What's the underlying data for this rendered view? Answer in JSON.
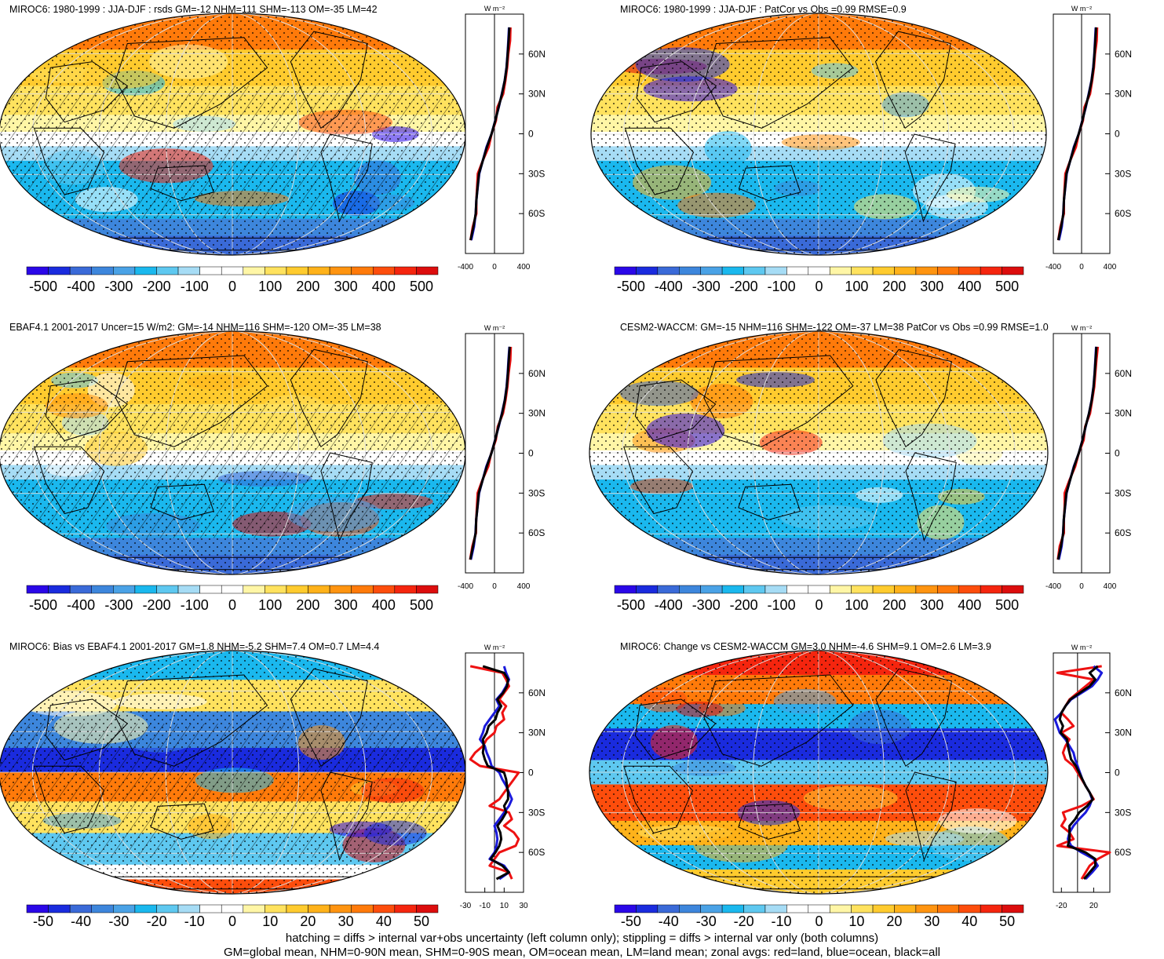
{
  "footer": {
    "line1": "hatching = diffs > internal var+obs uncertainty (left column only); stippling = diffs > internal var only (both columns)",
    "line2": "GM=global mean, NHM=0-90N mean, SHM=0-90S mean, OM=ocean mean, LM=land mean; zonal avgs: red=land, blue=ocean, black=all"
  },
  "colors": {
    "land": "#ee1111",
    "ocean": "#1a1adc",
    "all": "#000000",
    "scale": [
      "#2a07e8",
      "#1a2bde",
      "#3a6ad8",
      "#3d86dc",
      "#4aa2e6",
      "#1ab8ee",
      "#5ec8f0",
      "#a6dcf5",
      "#ffffff",
      "#ffffff",
      "#fff6a6",
      "#ffe25e",
      "#ffcb2e",
      "#ffb21a",
      "#ff9410",
      "#ff7a0a",
      "#fd4d0c",
      "#f5250e",
      "#dc0d0d"
    ]
  },
  "chart_data": [
    {
      "type": "map",
      "title": "MIROC6: 1980-1999 : JJA-DJF : rsds GM=-12 NHM=111 SHM=-113 OM=-35 LM=42",
      "field": "seasonal",
      "hatch": true,
      "colorbar_labels": [
        "-500",
        "-400",
        "-300",
        "-200",
        "-100",
        "0",
        "100",
        "200",
        "300",
        "400",
        "500"
      ],
      "zonal": {
        "unit_label": "W m⁻²",
        "xlim": [
          -400,
          400
        ],
        "xticks": [
          "-400",
          "0",
          "400"
        ],
        "lat_labels": [
          "60N",
          "30N",
          "0",
          "30S",
          "60S"
        ],
        "lat": [
          80,
          70,
          60,
          50,
          40,
          30,
          20,
          10,
          0,
          -10,
          -20,
          -30,
          -40,
          -50,
          -60,
          -70,
          -80
        ],
        "series": [
          {
            "name": "land",
            "values": [
              220,
              215,
              190,
              175,
              150,
              120,
              40,
              20,
              -40,
              -80,
              -160,
              -230,
              -240,
              -250,
              -250,
              -300,
              -330
            ]
          },
          {
            "name": "ocean",
            "values": [
              200,
              190,
              180,
              165,
              140,
              100,
              60,
              10,
              -40,
              -110,
              -160,
              -210,
              -230,
              -250,
              -260,
              -280,
              -320
            ]
          },
          {
            "name": "all",
            "values": [
              205,
              195,
              182,
              168,
              142,
              104,
              56,
              12,
              -40,
              -104,
              -160,
              -214,
              -232,
              -250,
              -258,
              -290,
              -330
            ]
          }
        ]
      }
    },
    {
      "type": "map",
      "title": "MIROC6: 1980-1999 : JJA-DJF : PatCor vs Obs =0.99 RMSE=0.9",
      "field": "seasonal",
      "hatch": false,
      "colorbar_labels": [
        "-500",
        "-400",
        "-300",
        "-200",
        "-100",
        "0",
        "100",
        "200",
        "300",
        "400",
        "500"
      ],
      "zonal": {
        "unit_label": "W m⁻²",
        "xlim": [
          -400,
          400
        ],
        "xticks": [
          "-400",
          "0",
          "400"
        ],
        "lat_labels": [
          "60N",
          "30N",
          "0",
          "30S",
          "60S"
        ],
        "lat": [
          80,
          70,
          60,
          50,
          40,
          30,
          20,
          10,
          0,
          -10,
          -20,
          -30,
          -40,
          -50,
          -60,
          -70,
          -80
        ],
        "series": [
          {
            "name": "land",
            "values": [
              220,
              215,
              190,
              175,
              150,
              120,
              40,
              20,
              -40,
              -80,
              -160,
              -230,
              -240,
              -250,
              -250,
              -300,
              -330
            ]
          },
          {
            "name": "ocean",
            "values": [
              200,
              190,
              180,
              165,
              140,
              100,
              60,
              10,
              -40,
              -110,
              -160,
              -210,
              -230,
              -250,
              -260,
              -280,
              -320
            ]
          },
          {
            "name": "all",
            "values": [
              205,
              195,
              182,
              168,
              142,
              104,
              56,
              12,
              -40,
              -104,
              -160,
              -214,
              -232,
              -250,
              -258,
              -290,
              -330
            ]
          }
        ]
      }
    },
    {
      "type": "map",
      "title": "EBAF4.1 2001-2017 Uncer=15 W/m2: GM=-14 NHM=116 SHM=-120 OM=-35 LM=38",
      "field": "seasonal",
      "hatch": true,
      "colorbar_labels": [
        "-500",
        "-400",
        "-300",
        "-200",
        "-100",
        "0",
        "100",
        "200",
        "300",
        "400",
        "500"
      ],
      "zonal": {
        "unit_label": "W m⁻²",
        "xlim": [
          -400,
          400
        ],
        "xticks": [
          "-400",
          "0",
          "400"
        ],
        "lat_labels": [
          "60N",
          "30N",
          "0",
          "30S",
          "60S"
        ],
        "lat": [
          80,
          70,
          60,
          50,
          40,
          30,
          20,
          10,
          0,
          -10,
          -20,
          -30,
          -40,
          -50,
          -60,
          -70,
          -80
        ],
        "series": [
          {
            "name": "land",
            "values": [
              225,
              218,
              195,
              178,
              152,
              118,
              45,
              18,
              -45,
              -85,
              -165,
              -232,
              -242,
              -252,
              -255,
              -305,
              -335
            ]
          },
          {
            "name": "ocean",
            "values": [
              205,
              192,
              182,
              166,
              142,
              102,
              58,
              8,
              -42,
              -112,
              -162,
              -212,
              -232,
              -252,
              -262,
              -285,
              -325
            ]
          },
          {
            "name": "all",
            "values": [
              210,
              197,
              185,
              170,
              144,
              106,
              54,
              10,
              -42,
              -106,
              -162,
              -216,
              -234,
              -252,
              -260,
              -295,
              -333
            ]
          }
        ]
      }
    },
    {
      "type": "map",
      "title": "CESM2-WACCM: GM=-15 NHM=116 SHM=-122 OM=-37 LM=38 PatCor vs Obs =0.99 RMSE=1.0",
      "field": "seasonal",
      "hatch": false,
      "colorbar_labels": [
        "-500",
        "-400",
        "-300",
        "-200",
        "-100",
        "0",
        "100",
        "200",
        "300",
        "400",
        "500"
      ],
      "zonal": {
        "unit_label": "W m⁻²",
        "xlim": [
          -400,
          400
        ],
        "xticks": [
          "-400",
          "0",
          "400"
        ],
        "lat_labels": [
          "60N",
          "30N",
          "0",
          "30S",
          "60S"
        ],
        "lat": [
          80,
          70,
          60,
          50,
          40,
          30,
          20,
          10,
          0,
          -10,
          -20,
          -30,
          -40,
          -50,
          -60,
          -70,
          -80
        ],
        "series": [
          {
            "name": "land",
            "values": [
              230,
              210,
              195,
              180,
              150,
              120,
              50,
              30,
              -40,
              -90,
              -170,
              -240,
              -240,
              -250,
              -250,
              -310,
              -335
            ]
          },
          {
            "name": "ocean",
            "values": [
              205,
              195,
              183,
              168,
              142,
              104,
              58,
              12,
              -40,
              -110,
              -162,
              -212,
              -232,
              -252,
              -262,
              -282,
              -322
            ]
          },
          {
            "name": "all",
            "values": [
              210,
              198,
              186,
              170,
              144,
              106,
              56,
              14,
              -40,
              -106,
              -162,
              -216,
              -234,
              -252,
              -260,
              -292,
              -332
            ]
          }
        ]
      }
    },
    {
      "type": "map",
      "title": "MIROC6: Bias vs EBAF4.1 2001-2017 GM=1.8 NHM=-5.2 SHM=7.4 OM=0.7 LM=4.4",
      "field": "bias",
      "hatch": true,
      "colorbar_labels": [
        "-50",
        "-40",
        "-30",
        "-20",
        "-10",
        "0",
        "10",
        "20",
        "30",
        "40",
        "50"
      ],
      "zonal": {
        "unit_label": "W m⁻²",
        "xlim": [
          -30,
          30
        ],
        "xticks": [
          "-30",
          "-10",
          "10",
          "30"
        ],
        "lat_labels": [
          "60N",
          "30N",
          "0",
          "30S",
          "60S"
        ],
        "lat": [
          80,
          75,
          70,
          65,
          60,
          55,
          50,
          45,
          40,
          35,
          30,
          25,
          20,
          15,
          10,
          5,
          0,
          -5,
          -10,
          -15,
          -20,
          -25,
          -30,
          -35,
          -40,
          -45,
          -50,
          -55,
          -60,
          -65,
          -70,
          -75,
          -80
        ],
        "series": [
          {
            "name": "land",
            "values": [
              -25,
              8,
              12,
              15,
              10,
              5,
              12,
              8,
              10,
              2,
              0,
              -8,
              -12,
              -20,
              -25,
              -15,
              25,
              20,
              15,
              10,
              5,
              -5,
              15,
              18,
              10,
              20,
              25,
              22,
              5,
              0,
              -5,
              15,
              18
            ]
          },
          {
            "name": "ocean",
            "values": [
              10,
              12,
              15,
              12,
              8,
              2,
              5,
              0,
              -5,
              -10,
              -12,
              -15,
              -10,
              -8,
              -5,
              -3,
              5,
              8,
              12,
              15,
              18,
              15,
              10,
              5,
              0,
              2,
              3,
              2,
              0,
              -5,
              10,
              15,
              5
            ]
          },
          {
            "name": "all",
            "values": [
              -12,
              10,
              14,
              13,
              9,
              3,
              7,
              3,
              1,
              -6,
              -8,
              -12,
              -11,
              -12,
              -10,
              -7,
              10,
              12,
              13,
              14,
              14,
              10,
              12,
              8,
              3,
              6,
              7,
              5,
              1,
              -4,
              8,
              15,
              2
            ]
          }
        ]
      }
    },
    {
      "type": "map",
      "title": "MIROC6: Change vs CESM2-WACCM GM=3.0 NHM=-4.6 SHM=9.1 OM=2.6 LM=3.9",
      "field": "change",
      "hatch": false,
      "colorbar_labels": [
        "-50",
        "-40",
        "-30",
        "-20",
        "-10",
        "0",
        "10",
        "20",
        "30",
        "40",
        "50"
      ],
      "zonal": {
        "unit_label": "W m⁻²",
        "xlim": [
          -30,
          40
        ],
        "xticks": [
          "-20",
          "20"
        ],
        "lat_labels": [
          "60N",
          "30N",
          "0",
          "30S",
          "60S"
        ],
        "lat": [
          80,
          75,
          70,
          65,
          60,
          55,
          50,
          45,
          40,
          35,
          30,
          25,
          20,
          15,
          10,
          5,
          0,
          -5,
          -10,
          -15,
          -20,
          -25,
          -30,
          -35,
          -40,
          -45,
          -50,
          -55,
          -60,
          -65,
          -70,
          -75,
          -80
        ],
        "series": [
          {
            "name": "land",
            "values": [
              30,
              -25,
              20,
              10,
              0,
              -10,
              -15,
              -20,
              -12,
              -5,
              -20,
              -10,
              -15,
              -18,
              -15,
              -5,
              0,
              5,
              10,
              15,
              20,
              5,
              -18,
              -15,
              -20,
              -10,
              -5,
              -25,
              40,
              25,
              15,
              10,
              5
            ]
          },
          {
            "name": "ocean",
            "values": [
              20,
              30,
              25,
              18,
              5,
              -8,
              -15,
              -20,
              -28,
              -25,
              -22,
              -15,
              -10,
              -5,
              -3,
              0,
              3,
              6,
              10,
              15,
              18,
              15,
              10,
              2,
              -5,
              -10,
              -12,
              -8,
              5,
              20,
              25,
              18,
              10
            ]
          },
          {
            "name": "all",
            "values": [
              25,
              15,
              22,
              15,
              3,
              -9,
              -15,
              -20,
              -22,
              -18,
              -21,
              -13,
              -12,
              -10,
              -8,
              -2,
              2,
              6,
              10,
              15,
              19,
              12,
              2,
              -3,
              -10,
              -10,
              -10,
              -12,
              10,
              22,
              22,
              15,
              8
            ]
          }
        ]
      }
    }
  ]
}
